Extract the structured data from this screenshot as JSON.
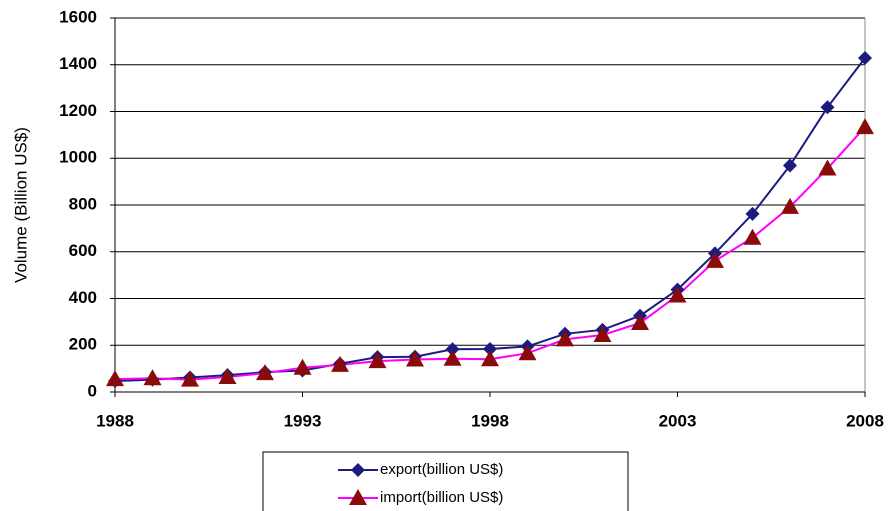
{
  "chart_data": {
    "type": "line",
    "y_label": "Volume (Billion US$)",
    "x": [
      1988,
      1989,
      1990,
      1991,
      1992,
      1993,
      1994,
      1995,
      1996,
      1997,
      1998,
      1999,
      2000,
      2001,
      2002,
      2003,
      2004,
      2005,
      2006,
      2007,
      2008
    ],
    "series": [
      {
        "name": "export(billion US$)",
        "color": "#1c1c80",
        "marker": "diamond",
        "values": [
          47,
          53,
          62,
          72,
          85,
          92,
          121,
          149,
          151,
          183,
          184,
          195,
          249,
          266,
          326,
          438,
          593,
          762,
          969,
          1218,
          1429
        ]
      },
      {
        "name": "import(billion US$)",
        "color": "#ff00ff",
        "marker_color": "#8b0a0a",
        "marker": "triangle",
        "values": [
          55,
          59,
          53,
          64,
          81,
          104,
          116,
          132,
          139,
          142,
          140,
          166,
          225,
          244,
          295,
          413,
          561,
          660,
          792,
          956,
          1133
        ]
      }
    ],
    "xlim": [
      1988,
      2008
    ],
    "xticks": [
      1988,
      1993,
      1998,
      2003,
      2008
    ],
    "ylim": [
      0,
      1600
    ],
    "yticks": [
      0,
      200,
      400,
      600,
      800,
      1000,
      1200,
      1400,
      1600
    ],
    "grid": true,
    "legend": "bottom"
  }
}
